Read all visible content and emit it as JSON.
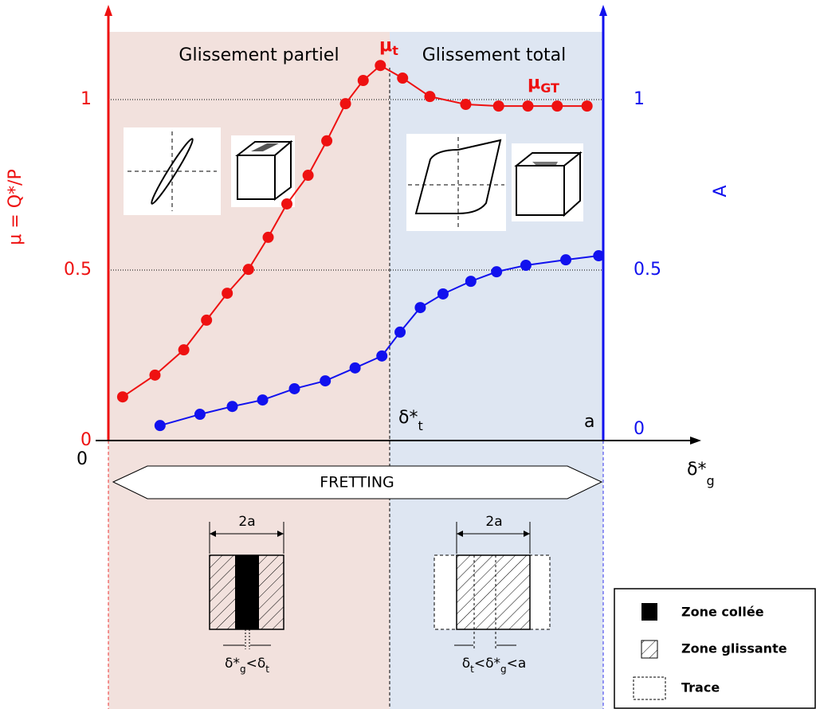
{
  "chart_data": {
    "type": "line",
    "annotations": {
      "partial": "Glissement partiel",
      "total": "Glissement total",
      "fretting": "FRETTING",
      "a": "a",
      "mu_t": [
        "μ",
        "t"
      ],
      "mu_gt": [
        "μ",
        "GT"
      ],
      "delta_t": [
        "δ*",
        "t"
      ],
      "width_left": "2a",
      "width_right": "2a",
      "cond_left": [
        "δ*",
        "g",
        "<δ",
        "t"
      ],
      "cond_right": [
        "δ",
        "t",
        "<δ*",
        "g",
        "<a"
      ]
    },
    "x_label": [
      "δ*",
      "g"
    ],
    "y_label": "μ = Q*/P",
    "y2_label": "A",
    "xlim": [
      -0.03,
      1.2
    ],
    "xticks": [
      0
    ],
    "ylim": [
      0,
      1.25
    ],
    "yticks": [
      0,
      0.5,
      1
    ],
    "y2lim": [
      0,
      1.25
    ],
    "y2ticks": [
      0,
      0.5,
      1
    ],
    "grid": true,
    "series": [
      {
        "name": "μ",
        "color": "#ee1111",
        "x": [
          0.055,
          0.119,
          0.176,
          0.221,
          0.262,
          0.304,
          0.343,
          0.38,
          0.422,
          0.459,
          0.496,
          0.531,
          0.565,
          0.609,
          0.663,
          0.734,
          0.799,
          0.857,
          0.915,
          0.974
        ],
        "values": [
          0.128,
          0.192,
          0.266,
          0.353,
          0.432,
          0.502,
          0.596,
          0.694,
          0.778,
          0.879,
          0.988,
          1.056,
          1.1,
          1.063,
          1.009,
          0.986,
          0.981,
          0.981,
          0.981,
          0.981
        ]
      },
      {
        "name": "A",
        "color": "#1111ee",
        "axis": "y2",
        "x": [
          0.129,
          0.208,
          0.272,
          0.332,
          0.395,
          0.456,
          0.515,
          0.568,
          0.604,
          0.644,
          0.689,
          0.744,
          0.795,
          0.853,
          0.932,
          0.997
        ],
        "values": [
          0.044,
          0.077,
          0.1,
          0.119,
          0.152,
          0.175,
          0.213,
          0.248,
          0.318,
          0.39,
          0.43,
          0.467,
          0.495,
          0.514,
          0.53,
          0.542
        ]
      }
    ],
    "legend": [
      "Zone collée",
      "Zone glissante",
      "Trace"
    ]
  }
}
